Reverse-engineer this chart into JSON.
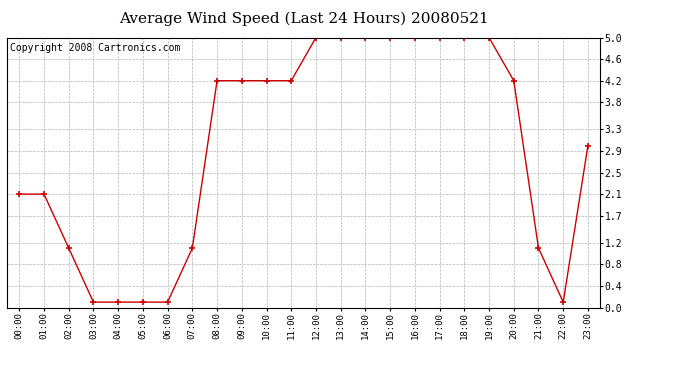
{
  "title": "Average Wind Speed (Last 24 Hours) 20080521",
  "copyright_text": "Copyright 2008 Cartronics.com",
  "x_labels": [
    "00:00",
    "01:00",
    "02:00",
    "03:00",
    "04:00",
    "05:00",
    "06:00",
    "07:00",
    "08:00",
    "09:00",
    "10:00",
    "11:00",
    "12:00",
    "13:00",
    "14:00",
    "15:00",
    "16:00",
    "17:00",
    "18:00",
    "19:00",
    "20:00",
    "21:00",
    "22:00",
    "23:00"
  ],
  "y_values": [
    2.1,
    2.1,
    1.1,
    0.1,
    0.1,
    0.1,
    0.1,
    1.1,
    4.2,
    4.2,
    4.2,
    4.2,
    5.0,
    5.0,
    5.0,
    5.0,
    5.0,
    5.0,
    5.0,
    5.0,
    4.2,
    1.1,
    0.1,
    3.0
  ],
  "y_ticks": [
    0.0,
    0.4,
    0.8,
    1.2,
    1.7,
    2.1,
    2.5,
    2.9,
    3.3,
    3.8,
    4.2,
    4.6,
    5.0
  ],
  "ylim": [
    0.0,
    5.0
  ],
  "line_color": "#cc0000",
  "marker_color": "#cc0000",
  "bg_color": "#ffffff",
  "plot_bg_color": "#ffffff",
  "grid_color": "#aaaaaa",
  "title_fontsize": 11,
  "copyright_fontsize": 7
}
